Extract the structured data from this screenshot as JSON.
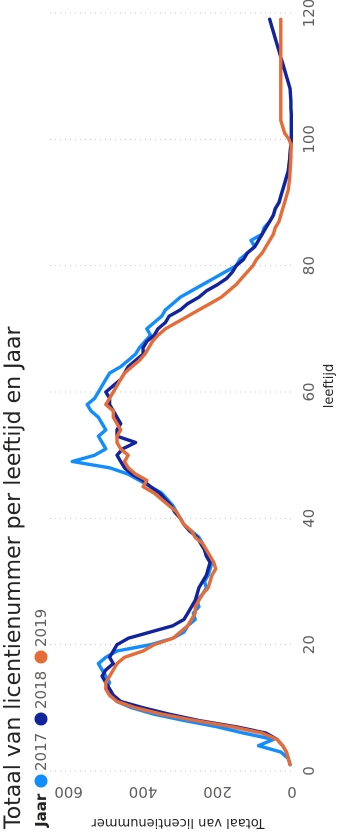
{
  "chart_data": {
    "type": "line",
    "title": "Totaal van licentienummer per leeftijd en Jaar",
    "xlabel": "leeftijd",
    "ylabel": "Totaal van licentienummer",
    "xlim": [
      0,
      120
    ],
    "ylim": [
      0,
      650
    ],
    "x_ticks": [
      0,
      20,
      40,
      60,
      80,
      100,
      120
    ],
    "y_ticks": [
      0,
      200,
      400,
      600
    ],
    "x_tick_labels": [
      "0",
      "20",
      "40",
      "60",
      "80",
      "100",
      "120"
    ],
    "y_tick_labels": [
      "0",
      "200",
      "400",
      "600"
    ],
    "grid": "vertical dotted",
    "legend": {
      "title": "Jaar",
      "position": "top-left",
      "items": [
        {
          "name": "2017",
          "color": "#118dff"
        },
        {
          "name": "2018",
          "color": "#12239e"
        },
        {
          "name": "2019",
          "color": "#e66c37"
        }
      ]
    },
    "series": [
      {
        "name": "2017",
        "color": "#118dff",
        "x": [
          1,
          2,
          3,
          4,
          5,
          6,
          7,
          8,
          9,
          10,
          11,
          12,
          13,
          14,
          15,
          16,
          17,
          18,
          19,
          20,
          21,
          22,
          23,
          24,
          25,
          26,
          27,
          28,
          29,
          30,
          31,
          32,
          33,
          34,
          35,
          36,
          37,
          38,
          39,
          40,
          41,
          42,
          43,
          44,
          45,
          46,
          47,
          48,
          49,
          50,
          51,
          52,
          53,
          54,
          55,
          56,
          57,
          58,
          59,
          60,
          61,
          62,
          63,
          64,
          65,
          66,
          67,
          68,
          69,
          70,
          71,
          72,
          73,
          74,
          75,
          76,
          77,
          78,
          79,
          80,
          81,
          82,
          83,
          84,
          85,
          86,
          87,
          88,
          89,
          90,
          91,
          92,
          93,
          94,
          95,
          96,
          97,
          98,
          99,
          100
        ],
        "y": [
          5,
          10,
          30,
          90,
          50,
          130,
          200,
          290,
          370,
          430,
          470,
          490,
          500,
          490,
          500,
          510,
          520,
          500,
          470,
          380,
          320,
          290,
          280,
          260,
          265,
          250,
          255,
          240,
          230,
          235,
          225,
          220,
          215,
          225,
          235,
          240,
          250,
          270,
          290,
          300,
          310,
          320,
          335,
          350,
          380,
          410,
          440,
          490,
          590,
          530,
          500,
          510,
          520,
          500,
          510,
          520,
          540,
          550,
          530,
          520,
          510,
          500,
          490,
          460,
          440,
          420,
          410,
          395,
          380,
          390,
          370,
          350,
          340,
          320,
          300,
          270,
          240,
          210,
          180,
          150,
          140,
          120,
          100,
          110,
          80,
          75,
          60,
          50,
          45,
          35,
          30,
          25,
          20,
          15,
          10,
          8,
          6,
          5,
          3,
          2
        ]
      },
      {
        "name": "2018",
        "color": "#12239e",
        "x": [
          1,
          2,
          3,
          4,
          5,
          6,
          7,
          8,
          9,
          10,
          11,
          12,
          13,
          14,
          15,
          16,
          17,
          18,
          19,
          20,
          21,
          22,
          23,
          24,
          25,
          26,
          27,
          28,
          29,
          30,
          31,
          32,
          33,
          34,
          35,
          36,
          37,
          38,
          39,
          40,
          41,
          42,
          43,
          44,
          45,
          46,
          47,
          48,
          49,
          50,
          51,
          52,
          53,
          54,
          55,
          56,
          57,
          58,
          59,
          60,
          61,
          62,
          63,
          64,
          65,
          66,
          67,
          68,
          69,
          70,
          71,
          72,
          73,
          74,
          75,
          76,
          77,
          78,
          79,
          80,
          81,
          82,
          83,
          84,
          85,
          86,
          87,
          88,
          89,
          90,
          91,
          92,
          93,
          94,
          95,
          96,
          97,
          98,
          99,
          100,
          101,
          102,
          103,
          104,
          105,
          106,
          107,
          108,
          109,
          110,
          111,
          112,
          113,
          114,
          115,
          116,
          117,
          118,
          119
        ],
        "y": [
          5,
          10,
          15,
          25,
          40,
          70,
          150,
          250,
          330,
          400,
          460,
          480,
          490,
          500,
          510,
          500,
          480,
          490,
          480,
          470,
          440,
          380,
          320,
          290,
          280,
          270,
          260,
          255,
          250,
          240,
          230,
          225,
          220,
          230,
          235,
          245,
          255,
          275,
          290,
          300,
          315,
          325,
          340,
          355,
          380,
          400,
          430,
          450,
          460,
          470,
          455,
          420,
          470,
          470,
          460,
          470,
          480,
          490,
          490,
          500,
          480,
          460,
          450,
          440,
          420,
          400,
          400,
          390,
          370,
          360,
          340,
          330,
          300,
          280,
          250,
          230,
          200,
          175,
          160,
          150,
          130,
          120,
          100,
          90,
          80,
          70,
          60,
          50,
          45,
          35,
          30,
          25,
          20,
          15,
          10,
          8,
          6,
          5,
          3,
          2,
          2,
          2,
          2,
          2,
          3,
          3,
          4,
          5,
          10,
          15,
          20,
          25,
          30,
          35,
          40,
          45,
          50,
          55,
          60
        ]
      },
      {
        "name": "2019",
        "color": "#e66c37",
        "x": [
          1,
          2,
          3,
          4,
          5,
          6,
          7,
          8,
          9,
          10,
          11,
          12,
          13,
          14,
          15,
          16,
          17,
          18,
          19,
          20,
          21,
          22,
          23,
          24,
          25,
          26,
          27,
          28,
          29,
          30,
          31,
          32,
          33,
          34,
          35,
          36,
          37,
          38,
          39,
          40,
          41,
          42,
          43,
          44,
          45,
          46,
          47,
          48,
          49,
          50,
          51,
          52,
          53,
          54,
          55,
          56,
          57,
          58,
          59,
          60,
          61,
          62,
          63,
          64,
          65,
          66,
          67,
          68,
          69,
          70,
          71,
          72,
          73,
          74,
          75,
          76,
          77,
          78,
          79,
          80,
          81,
          82,
          83,
          84,
          85,
          86,
          87,
          88,
          89,
          90,
          91,
          92,
          93,
          94,
          95,
          96,
          97,
          98,
          99,
          100,
          101,
          102,
          103,
          104,
          105,
          106,
          107,
          108,
          109,
          110,
          111,
          112,
          113,
          114,
          115,
          116,
          117,
          118,
          119
        ],
        "y": [
          5,
          10,
          15,
          25,
          40,
          80,
          160,
          260,
          350,
          420,
          470,
          490,
          500,
          500,
          490,
          480,
          470,
          450,
          400,
          370,
          320,
          300,
          280,
          270,
          260,
          260,
          250,
          240,
          225,
          220,
          215,
          205,
          210,
          220,
          230,
          240,
          260,
          270,
          290,
          300,
          310,
          330,
          350,
          370,
          400,
          390,
          420,
          440,
          450,
          440,
          460,
          470,
          470,
          460,
          470,
          480,
          480,
          500,
          490,
          480,
          470,
          460,
          450,
          430,
          410,
          395,
          385,
          375,
          360,
          340,
          310,
          280,
          250,
          220,
          190,
          170,
          150,
          135,
          120,
          105,
          95,
          80,
          70,
          60,
          50,
          45,
          35,
          30,
          25,
          20,
          15,
          10,
          8,
          6,
          5,
          4,
          3,
          3,
          2,
          8,
          20,
          25,
          30,
          30,
          30,
          30,
          30,
          30,
          30,
          30,
          30,
          30,
          30,
          30,
          30,
          30,
          30,
          30,
          30
        ]
      }
    ]
  }
}
